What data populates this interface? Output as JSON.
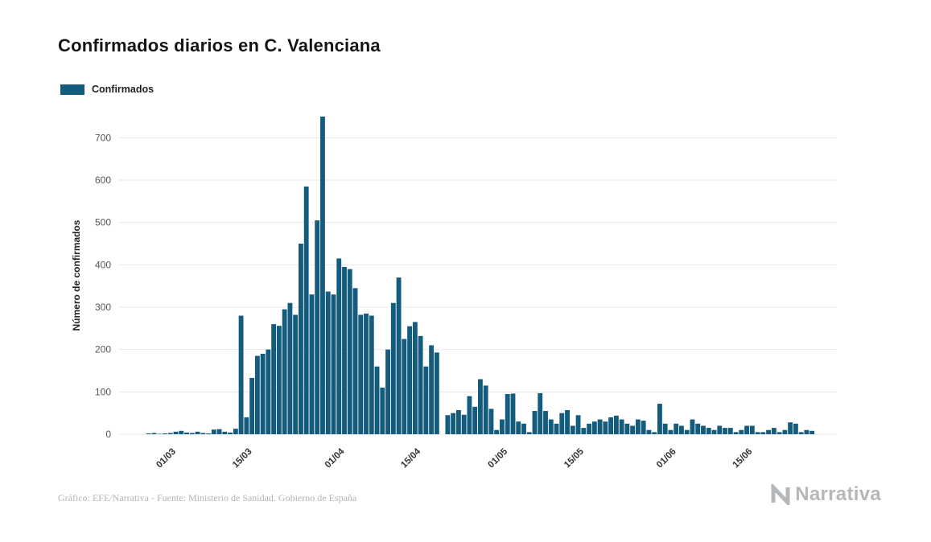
{
  "header": {
    "title": "Confirmados diarios en C. Valenciana"
  },
  "legend": {
    "label": "Confirmados"
  },
  "footer": {
    "credit": "Gráfico: EFE/Narrativa - Fuente: Ministerio de Sanidad. Gobierno de España",
    "brand": "Narrativa"
  },
  "colors": {
    "bar": "#135c7e",
    "grid": "#e7e7e7",
    "axis_text": "#555555",
    "tick_text": "#333333",
    "title": "#151515",
    "muted": "#b5b8ba"
  },
  "chart_data": {
    "type": "bar",
    "title": "Confirmados diarios en C. Valenciana",
    "xlabel": "",
    "ylabel": "Número de confirmados",
    "ylim": [
      0,
      750
    ],
    "yticks": [
      0,
      100,
      200,
      300,
      400,
      500,
      600,
      700
    ],
    "grid": "horizontal",
    "legend_position": "top-left",
    "x_tick_labels": [
      "01/03",
      "15/03",
      "01/04",
      "15/04",
      "01/05",
      "15/05",
      "01/06",
      "15/06"
    ],
    "x": [
      "20/02",
      "21/02",
      "22/02",
      "23/02",
      "24/02",
      "25/02",
      "26/02",
      "27/02",
      "28/02",
      "29/02",
      "01/03",
      "02/03",
      "03/03",
      "04/03",
      "05/03",
      "06/03",
      "07/03",
      "08/03",
      "09/03",
      "10/03",
      "11/03",
      "12/03",
      "13/03",
      "14/03",
      "15/03",
      "16/03",
      "17/03",
      "18/03",
      "19/03",
      "20/03",
      "21/03",
      "22/03",
      "23/03",
      "24/03",
      "25/03",
      "26/03",
      "27/03",
      "28/03",
      "29/03",
      "30/03",
      "31/03",
      "01/04",
      "02/04",
      "03/04",
      "04/04",
      "05/04",
      "06/04",
      "07/04",
      "08/04",
      "09/04",
      "10/04",
      "11/04",
      "12/04",
      "13/04",
      "14/04",
      "15/04",
      "16/04",
      "17/04",
      "18/04",
      "19/04",
      "20/04",
      "21/04",
      "22/04",
      "23/04",
      "24/04",
      "25/04",
      "26/04",
      "27/04",
      "28/04",
      "29/04",
      "30/04",
      "01/05",
      "02/05",
      "03/05",
      "04/05",
      "05/05",
      "06/05",
      "07/05",
      "08/05",
      "09/05",
      "10/05",
      "11/05",
      "12/05",
      "13/05",
      "14/05",
      "15/05",
      "16/05",
      "17/05",
      "18/05",
      "19/05",
      "20/05",
      "21/05",
      "22/05",
      "23/05",
      "24/05",
      "25/05",
      "26/05",
      "27/05",
      "28/05",
      "29/05",
      "30/05",
      "31/05",
      "01/06",
      "02/06",
      "03/06",
      "04/06",
      "05/06",
      "06/06",
      "07/06",
      "08/06",
      "09/06",
      "10/06",
      "11/06",
      "12/06",
      "13/06",
      "14/06",
      "15/06",
      "16/06",
      "17/06",
      "18/06",
      "19/06",
      "20/06",
      "21/06",
      "22/06",
      "23/06",
      "24/06",
      "25/06",
      "26/06",
      "27/06",
      "28/06",
      "29/06",
      "30/06"
    ],
    "series": [
      {
        "name": "Confirmados",
        "values": [
          0,
          0,
          0,
          0,
          0,
          2,
          3,
          1,
          2,
          3,
          6,
          8,
          4,
          3,
          6,
          3,
          2,
          11,
          12,
          6,
          4,
          13,
          280,
          40,
          133,
          185,
          190,
          200,
          260,
          256,
          295,
          310,
          282,
          450,
          585,
          330,
          505,
          750,
          337,
          330,
          415,
          395,
          390,
          345,
          282,
          285,
          280,
          160,
          110,
          200,
          310,
          370,
          225,
          255,
          265,
          232,
          160,
          210,
          193,
          0,
          45,
          50,
          57,
          46,
          90,
          65,
          130,
          115,
          60,
          10,
          35,
          95,
          96,
          30,
          25,
          5,
          55,
          97,
          55,
          35,
          25,
          50,
          57,
          20,
          45,
          15,
          25,
          30,
          35,
          30,
          40,
          44,
          35,
          25,
          20,
          35,
          32,
          10,
          5,
          72,
          25,
          10,
          25,
          20,
          10,
          35,
          25,
          20,
          15,
          10,
          20,
          15,
          15,
          5,
          10,
          20,
          20,
          5,
          5,
          10,
          15,
          5,
          10,
          28,
          25,
          5,
          10,
          8,
          0,
          0,
          0,
          0
        ]
      }
    ]
  }
}
